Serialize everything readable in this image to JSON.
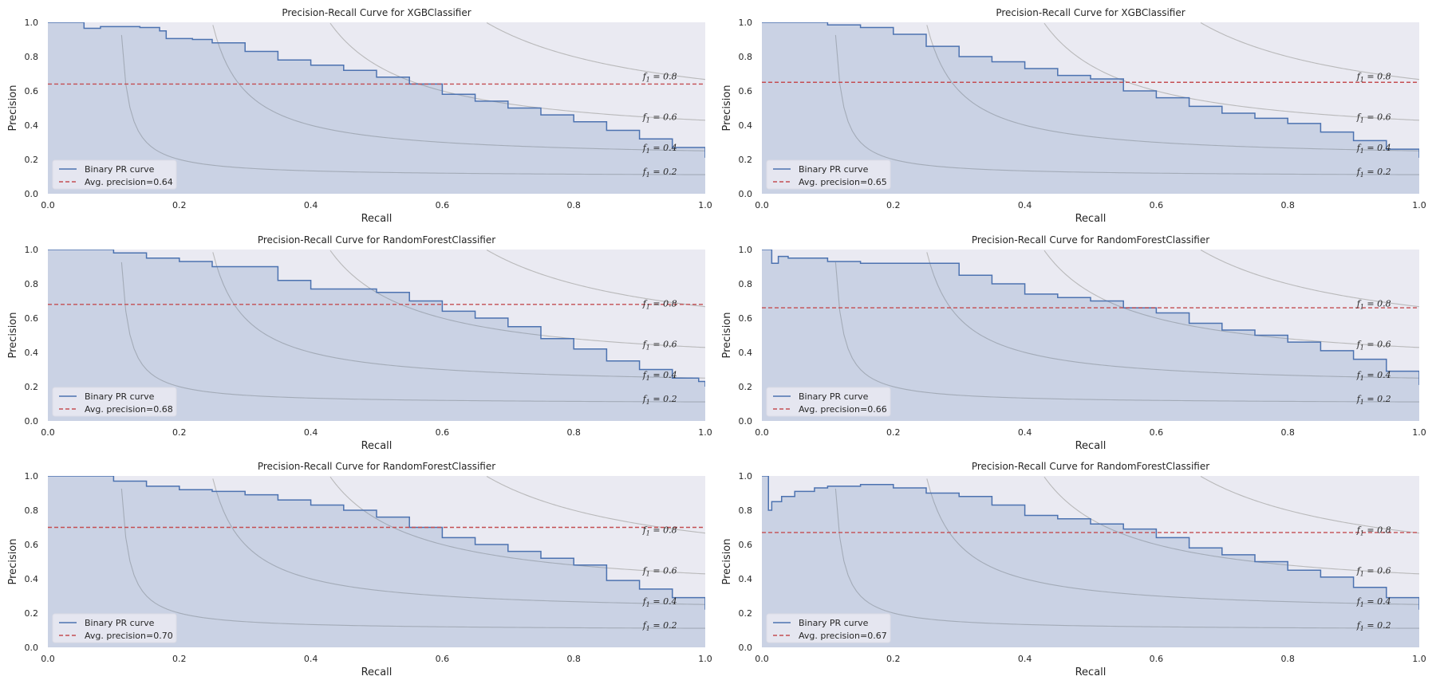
{
  "colors": {
    "axes_bg": "#eaeaf2",
    "pr_curve": "#4c72b0",
    "avg_precision_line": "#c44e52",
    "iso_f1": "#b0b0b0"
  },
  "chart_data": [
    {
      "type": "line",
      "title": "Precision-Recall Curve for XGBClassifier",
      "xlabel": "Recall",
      "ylabel": "Precision",
      "xlim": [
        0,
        1
      ],
      "ylim": [
        0,
        1
      ],
      "xticks": [
        "0.0",
        "0.2",
        "0.4",
        "0.6",
        "0.8",
        "1.0"
      ],
      "yticks": [
        "0.0",
        "0.2",
        "0.4",
        "0.6",
        "0.8",
        "1.0"
      ],
      "grid": false,
      "legend_position": "lower-left",
      "series": [
        {
          "name": "Binary PR curve",
          "style": "step-filled",
          "x": [
            0.0,
            0.05,
            0.055,
            0.08,
            0.14,
            0.17,
            0.18,
            0.22,
            0.25,
            0.3,
            0.35,
            0.4,
            0.45,
            0.5,
            0.55,
            0.6,
            0.65,
            0.7,
            0.75,
            0.8,
            0.85,
            0.9,
            0.95,
            1.0
          ],
          "y": [
            1.0,
            1.0,
            0.965,
            0.975,
            0.97,
            0.95,
            0.905,
            0.9,
            0.88,
            0.83,
            0.78,
            0.75,
            0.72,
            0.68,
            0.64,
            0.58,
            0.54,
            0.5,
            0.46,
            0.42,
            0.37,
            0.32,
            0.27,
            0.21
          ]
        },
        {
          "name": "Avg. precision=0.64",
          "value": 0.64
        }
      ],
      "iso_f1": [
        0.2,
        0.4,
        0.6,
        0.8
      ],
      "iso_f1_labels": [
        "f1=0.2",
        "f1=0.4",
        "f1=0.6",
        "f1=0.8"
      ]
    },
    {
      "type": "line",
      "title": "Precision-Recall Curve for XGBClassifier",
      "xlabel": "Recall",
      "ylabel": "Precision",
      "xlim": [
        0,
        1
      ],
      "ylim": [
        0,
        1
      ],
      "xticks": [
        "0.0",
        "0.2",
        "0.4",
        "0.6",
        "0.8",
        "1.0"
      ],
      "yticks": [
        "0.0",
        "0.2",
        "0.4",
        "0.6",
        "0.8",
        "1.0"
      ],
      "grid": false,
      "legend_position": "lower-left",
      "series": [
        {
          "name": "Binary PR curve",
          "style": "step-filled",
          "x": [
            0.0,
            0.07,
            0.1,
            0.15,
            0.2,
            0.25,
            0.3,
            0.35,
            0.4,
            0.45,
            0.5,
            0.55,
            0.6,
            0.65,
            0.7,
            0.75,
            0.8,
            0.85,
            0.9,
            0.95,
            1.0
          ],
          "y": [
            1.0,
            1.0,
            0.985,
            0.97,
            0.93,
            0.86,
            0.8,
            0.77,
            0.73,
            0.69,
            0.67,
            0.6,
            0.56,
            0.51,
            0.47,
            0.44,
            0.41,
            0.36,
            0.31,
            0.26,
            0.21
          ]
        },
        {
          "name": "Avg. precision=0.65",
          "value": 0.65
        }
      ],
      "iso_f1": [
        0.2,
        0.4,
        0.6,
        0.8
      ],
      "iso_f1_labels": [
        "f1=0.2",
        "f1=0.4",
        "f1=0.6",
        "f1=0.8"
      ]
    },
    {
      "type": "line",
      "title": "Precision-Recall Curve for RandomForestClassifier",
      "xlabel": "Recall",
      "ylabel": "Precision",
      "xlim": [
        0,
        1
      ],
      "ylim": [
        0,
        1
      ],
      "xticks": [
        "0.0",
        "0.2",
        "0.4",
        "0.6",
        "0.8",
        "1.0"
      ],
      "yticks": [
        "0.0",
        "0.2",
        "0.4",
        "0.6",
        "0.8",
        "1.0"
      ],
      "grid": false,
      "legend_position": "lower-left",
      "series": [
        {
          "name": "Binary PR curve",
          "style": "step-filled",
          "x": [
            0.0,
            0.07,
            0.1,
            0.15,
            0.2,
            0.25,
            0.3,
            0.35,
            0.4,
            0.45,
            0.5,
            0.55,
            0.6,
            0.65,
            0.7,
            0.75,
            0.8,
            0.85,
            0.9,
            0.95,
            0.99,
            1.0
          ],
          "y": [
            1.0,
            1.0,
            0.98,
            0.95,
            0.93,
            0.9,
            0.9,
            0.82,
            0.77,
            0.77,
            0.75,
            0.7,
            0.64,
            0.6,
            0.55,
            0.48,
            0.42,
            0.35,
            0.3,
            0.25,
            0.23,
            0.2
          ]
        },
        {
          "name": "Avg. precision=0.68",
          "value": 0.68
        }
      ],
      "iso_f1": [
        0.2,
        0.4,
        0.6,
        0.8
      ],
      "iso_f1_labels": [
        "f1=0.2",
        "f1=0.4",
        "f1=0.6",
        "f1=0.8"
      ]
    },
    {
      "type": "line",
      "title": "Precision-Recall Curve for RandomForestClassifier",
      "xlabel": "Recall",
      "ylabel": "Precision",
      "xlim": [
        0,
        1
      ],
      "ylim": [
        0,
        1
      ],
      "xticks": [
        "0.0",
        "0.2",
        "0.4",
        "0.6",
        "0.8",
        "1.0"
      ],
      "yticks": [
        "0.0",
        "0.2",
        "0.4",
        "0.6",
        "0.8",
        "1.0"
      ],
      "grid": false,
      "legend_position": "lower-left",
      "series": [
        {
          "name": "Binary PR curve",
          "style": "step-filled",
          "x": [
            0.0,
            0.01,
            0.015,
            0.025,
            0.04,
            0.1,
            0.15,
            0.2,
            0.26,
            0.3,
            0.35,
            0.4,
            0.45,
            0.5,
            0.55,
            0.6,
            0.65,
            0.7,
            0.75,
            0.8,
            0.85,
            0.9,
            0.95,
            1.0
          ],
          "y": [
            1.0,
            1.0,
            0.92,
            0.96,
            0.95,
            0.93,
            0.92,
            0.92,
            0.92,
            0.85,
            0.8,
            0.74,
            0.72,
            0.7,
            0.66,
            0.63,
            0.57,
            0.53,
            0.5,
            0.46,
            0.41,
            0.36,
            0.29,
            0.21
          ]
        },
        {
          "name": "Avg. precision=0.66",
          "value": 0.66
        }
      ],
      "iso_f1": [
        0.2,
        0.4,
        0.6,
        0.8
      ],
      "iso_f1_labels": [
        "f1=0.2",
        "f1=0.4",
        "f1=0.6",
        "f1=0.8"
      ]
    },
    {
      "type": "line",
      "title": "Precision-Recall Curve for RandomForestClassifier",
      "xlabel": "Recall",
      "ylabel": "Precision",
      "xlim": [
        0,
        1
      ],
      "ylim": [
        0,
        1
      ],
      "xticks": [
        "0.0",
        "0.2",
        "0.4",
        "0.6",
        "0.8",
        "1.0"
      ],
      "yticks": [
        "0.0",
        "0.2",
        "0.4",
        "0.6",
        "0.8",
        "1.0"
      ],
      "grid": false,
      "legend_position": "lower-left",
      "series": [
        {
          "name": "Binary PR curve",
          "style": "step-filled",
          "x": [
            0.0,
            0.07,
            0.1,
            0.15,
            0.2,
            0.25,
            0.3,
            0.35,
            0.4,
            0.45,
            0.5,
            0.55,
            0.6,
            0.65,
            0.7,
            0.75,
            0.8,
            0.85,
            0.9,
            0.95,
            1.0
          ],
          "y": [
            1.0,
            1.0,
            0.97,
            0.94,
            0.92,
            0.91,
            0.89,
            0.86,
            0.83,
            0.8,
            0.76,
            0.7,
            0.64,
            0.6,
            0.56,
            0.52,
            0.48,
            0.39,
            0.34,
            0.29,
            0.22
          ]
        },
        {
          "name": "Avg. precision=0.70",
          "value": 0.7
        }
      ],
      "iso_f1": [
        0.2,
        0.4,
        0.6,
        0.8
      ],
      "iso_f1_labels": [
        "f1=0.2",
        "f1=0.4",
        "f1=0.6",
        "f1=0.8"
      ]
    },
    {
      "type": "line",
      "title": "Precision-Recall Curve for RandomForestClassifier",
      "xlabel": "Recall",
      "ylabel": "Precision",
      "xlim": [
        0,
        1
      ],
      "ylim": [
        0,
        1
      ],
      "xticks": [
        "0.0",
        "0.2",
        "0.4",
        "0.6",
        "0.8",
        "1.0"
      ],
      "yticks": [
        "0.0",
        "0.2",
        "0.4",
        "0.6",
        "0.8",
        "1.0"
      ],
      "grid": false,
      "legend_position": "lower-left",
      "series": [
        {
          "name": "Binary PR curve",
          "style": "step-filled",
          "x": [
            0.0,
            0.008,
            0.01,
            0.015,
            0.03,
            0.05,
            0.08,
            0.1,
            0.15,
            0.2,
            0.25,
            0.3,
            0.35,
            0.4,
            0.45,
            0.5,
            0.55,
            0.6,
            0.65,
            0.7,
            0.75,
            0.8,
            0.85,
            0.9,
            0.95,
            1.0
          ],
          "y": [
            1.0,
            1.0,
            0.8,
            0.85,
            0.88,
            0.91,
            0.93,
            0.94,
            0.95,
            0.93,
            0.9,
            0.88,
            0.83,
            0.77,
            0.75,
            0.72,
            0.69,
            0.64,
            0.58,
            0.54,
            0.5,
            0.45,
            0.41,
            0.35,
            0.29,
            0.22
          ]
        },
        {
          "name": "Avg. precision=0.67",
          "value": 0.67
        }
      ],
      "iso_f1": [
        0.2,
        0.4,
        0.6,
        0.8
      ],
      "iso_f1_labels": [
        "f1=0.2",
        "f1=0.4",
        "f1=0.6",
        "f1=0.8"
      ]
    }
  ]
}
